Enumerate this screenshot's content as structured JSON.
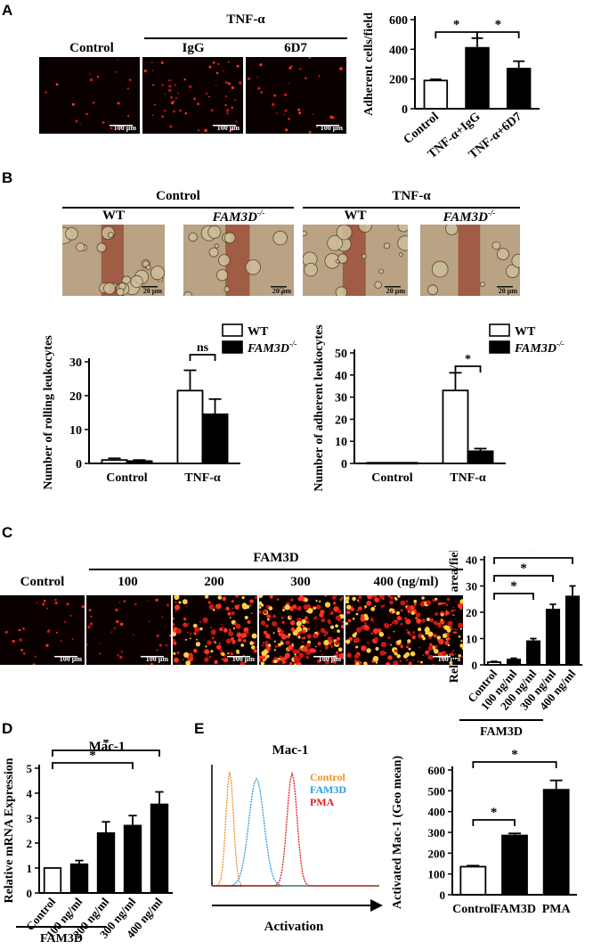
{
  "panels": {
    "A": "A",
    "B": "B",
    "C": "C",
    "D": "D",
    "E": "E"
  },
  "panelA": {
    "control": "Control",
    "treatment": "TNF-α",
    "igg": "IgG",
    "ab": "6D7",
    "scale": "100 μm"
  },
  "panelB": {
    "control": "Control",
    "tnf": "TNF-α",
    "wt": "WT",
    "ko": "FAM3D",
    "ko_sup": "-/-",
    "scale": "20 μm"
  },
  "panelC": {
    "control": "Control",
    "fam3d": "FAM3D",
    "d100": "100",
    "d200": "200",
    "d300": "300",
    "d400": "400 (ng/ml)",
    "scale": "100 μm"
  },
  "panelE": {
    "flow_title": "Mac-1",
    "legend_control": "Control",
    "legend_fam3d": "FAM3D",
    "legend_pma": "PMA",
    "xlabel": "Activation",
    "color_control": "#f0902a",
    "color_fam3d": "#2aa0e0",
    "color_pma": "#e02020"
  },
  "chart_data": [
    {
      "id": "A",
      "type": "bar",
      "categories": [
        "Control",
        "TNF-α+IgG",
        "TNF-α+6D7"
      ],
      "values": [
        190,
        410,
        270
      ],
      "errors": [
        8,
        65,
        50
      ],
      "fills": [
        "#ffffff",
        "#000000",
        "#000000"
      ],
      "ylabel": "Adherent cells/field",
      "ylim": [
        0,
        600
      ],
      "yticks": [
        0,
        200,
        400,
        600
      ],
      "significance": [
        {
          "from": 0,
          "to": 1,
          "label": "*"
        },
        {
          "from": 1,
          "to": 2,
          "label": "*"
        }
      ]
    },
    {
      "id": "B-rolling",
      "type": "bar",
      "categories": [
        "Control",
        "TNF-α"
      ],
      "series": [
        {
          "name": "WT",
          "values": [
            1,
            21.5
          ],
          "errors": [
            0.5,
            6
          ],
          "fill": "#ffffff"
        },
        {
          "name": "FAM3D-/-",
          "values": [
            0.7,
            14.5
          ],
          "errors": [
            0.3,
            4.5
          ],
          "fill": "#000000"
        }
      ],
      "ylabel": "Number of rolling leukocytes",
      "ylim": [
        0,
        30
      ],
      "yticks": [
        0,
        10,
        20,
        30
      ],
      "significance": [
        {
          "category": 1,
          "label": "ns"
        }
      ]
    },
    {
      "id": "B-adherent",
      "type": "bar",
      "categories": [
        "Control",
        "TNF-α"
      ],
      "series": [
        {
          "name": "WT",
          "values": [
            0.3,
            33
          ],
          "errors": [
            0,
            8
          ],
          "fill": "#ffffff"
        },
        {
          "name": "FAM3D-/-",
          "values": [
            0.3,
            5.5
          ],
          "errors": [
            0,
            1.2
          ],
          "fill": "#000000"
        }
      ],
      "ylabel": "Number of adherent leukocytes",
      "ylim": [
        0,
        50
      ],
      "yticks": [
        0,
        10,
        20,
        30,
        40,
        50
      ],
      "significance": [
        {
          "category": 1,
          "label": "*"
        }
      ]
    },
    {
      "id": "C",
      "type": "bar",
      "categories": [
        "Control",
        "100 ng/ml",
        "200 ng/ml",
        "300 ng/ml",
        "400 ng/ml"
      ],
      "group_label": "FAM3D",
      "values": [
        1,
        2,
        9,
        21,
        26
      ],
      "errors": [
        0.3,
        0.5,
        1,
        2,
        4
      ],
      "fills": [
        "#ffffff",
        "#000000",
        "#000000",
        "#000000",
        "#000000"
      ],
      "ylabel": "Relative positive area/field",
      "ylim": [
        0,
        40
      ],
      "yticks": [
        0,
        10,
        20,
        30,
        40
      ],
      "significance": [
        {
          "from": 0,
          "to": 2,
          "label": "*"
        },
        {
          "from": 0,
          "to": 3,
          "label": "*"
        },
        {
          "from": 0,
          "to": 4,
          "label": "*"
        }
      ]
    },
    {
      "id": "D",
      "type": "bar",
      "title": "Mac-1",
      "categories": [
        "Control",
        "100 ng/ml",
        "200 ng/ml",
        "300 ng/ml",
        "400 ng/ml"
      ],
      "group_label": "FAM3D",
      "values": [
        1,
        1.15,
        2.4,
        2.7,
        3.55
      ],
      "errors": [
        0,
        0.15,
        0.45,
        0.4,
        0.5
      ],
      "fills": [
        "#ffffff",
        "#000000",
        "#000000",
        "#000000",
        "#000000"
      ],
      "ylabel": "Relative mRNA Expression",
      "ylim": [
        0,
        5
      ],
      "yticks": [
        0,
        1,
        2,
        3,
        4,
        5
      ],
      "significance": [
        {
          "from": 0,
          "to": 3,
          "label": "*"
        },
        {
          "from": 0,
          "to": 4,
          "label": "*"
        }
      ]
    },
    {
      "id": "E",
      "type": "bar",
      "categories": [
        "Control",
        "FAM3D",
        "PMA"
      ],
      "values": [
        135,
        285,
        505
      ],
      "errors": [
        5,
        10,
        45
      ],
      "fills": [
        "#ffffff",
        "#000000",
        "#000000"
      ],
      "ylabel": "Activated Mac-1 (Geo mean)",
      "ylim": [
        0,
        600
      ],
      "yticks": [
        0,
        100,
        200,
        300,
        400,
        500,
        600
      ],
      "significance": [
        {
          "from": 0,
          "to": 1,
          "label": "*"
        },
        {
          "from": 0,
          "to": 2,
          "label": "*"
        }
      ]
    }
  ]
}
